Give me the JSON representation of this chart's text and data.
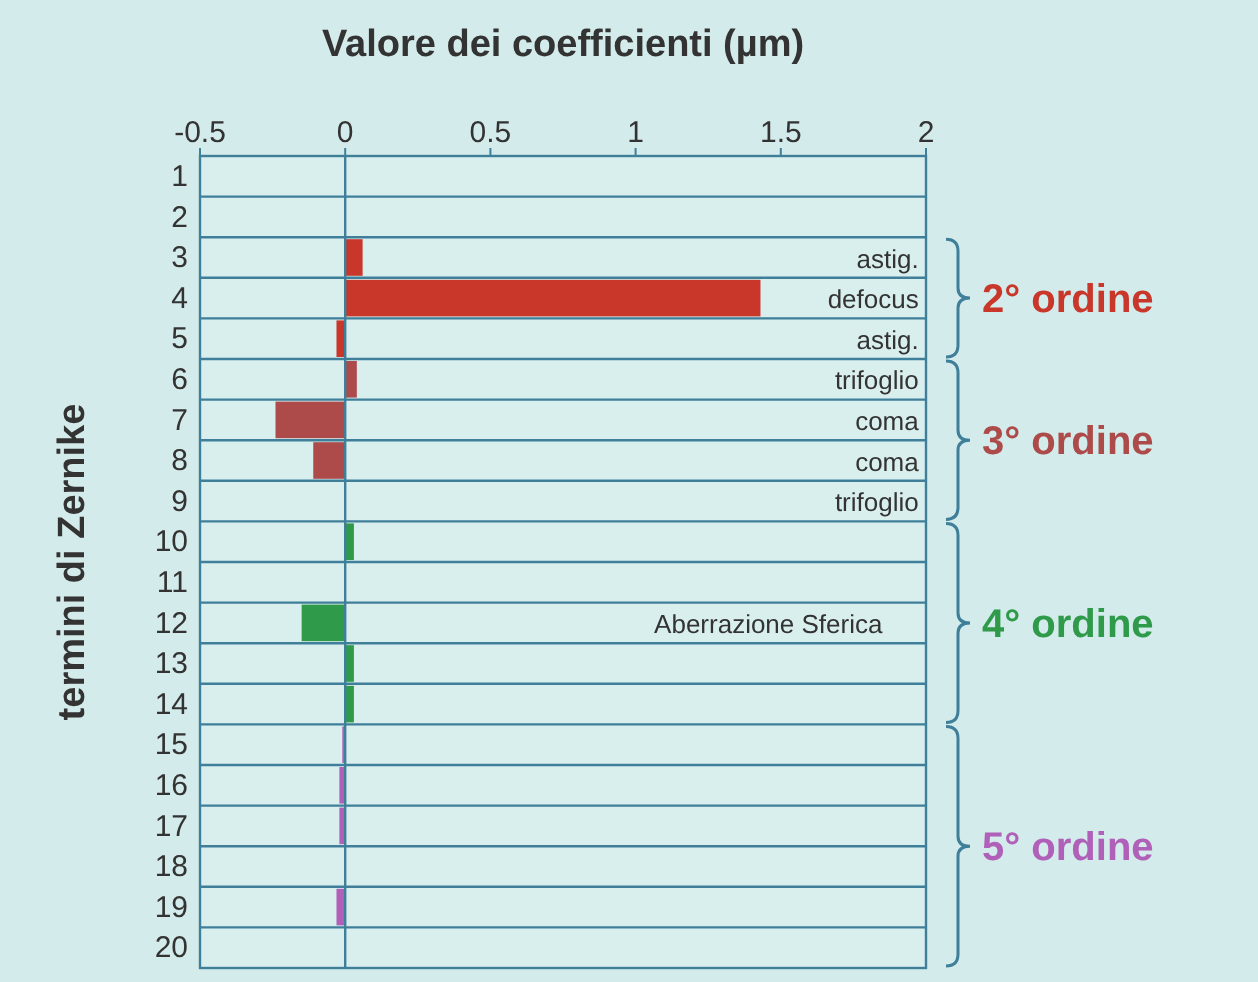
{
  "chart_data": {
    "type": "bar",
    "orientation": "horizontal",
    "xlabel": "Valore dei coefficienti (µm)",
    "ylabel": "termini di Zernike",
    "categories": [
      "1",
      "2",
      "3",
      "4",
      "5",
      "6",
      "7",
      "8",
      "9",
      "10",
      "11",
      "12",
      "13",
      "14",
      "15",
      "16",
      "17",
      "18",
      "19",
      "20"
    ],
    "values": [
      0,
      0,
      0.06,
      1.43,
      -0.03,
      0.04,
      -0.24,
      -0.11,
      0,
      0.03,
      0,
      -0.15,
      0.03,
      0.03,
      -0.01,
      -0.02,
      -0.02,
      0,
      -0.03,
      0
    ],
    "colors": [
      "#c8372a",
      "#c8372a",
      "#c8372a",
      "#c8372a",
      "#c8372a",
      "#ad4a4a",
      "#ad4a4a",
      "#ad4a4a",
      "#ad4a4a",
      "#2e9a4a",
      "#2e9a4a",
      "#2e9a4a",
      "#2e9a4a",
      "#2e9a4a",
      "#b060b8",
      "#b060b8",
      "#b060b8",
      "#b060b8",
      "#b060b8",
      "#b060b8"
    ],
    "xlim": [
      -0.5,
      2
    ],
    "xticks": [
      -0.5,
      0,
      0.5,
      1,
      1.5,
      2
    ],
    "annotations": [
      "astig.",
      "defocus",
      "astig.",
      "trifoglio",
      "coma",
      "coma",
      "trifoglio",
      "Aberrazione Sferica",
      "2° ordine",
      "3° ordine",
      "4° ordine",
      "5° ordine"
    ]
  }
}
